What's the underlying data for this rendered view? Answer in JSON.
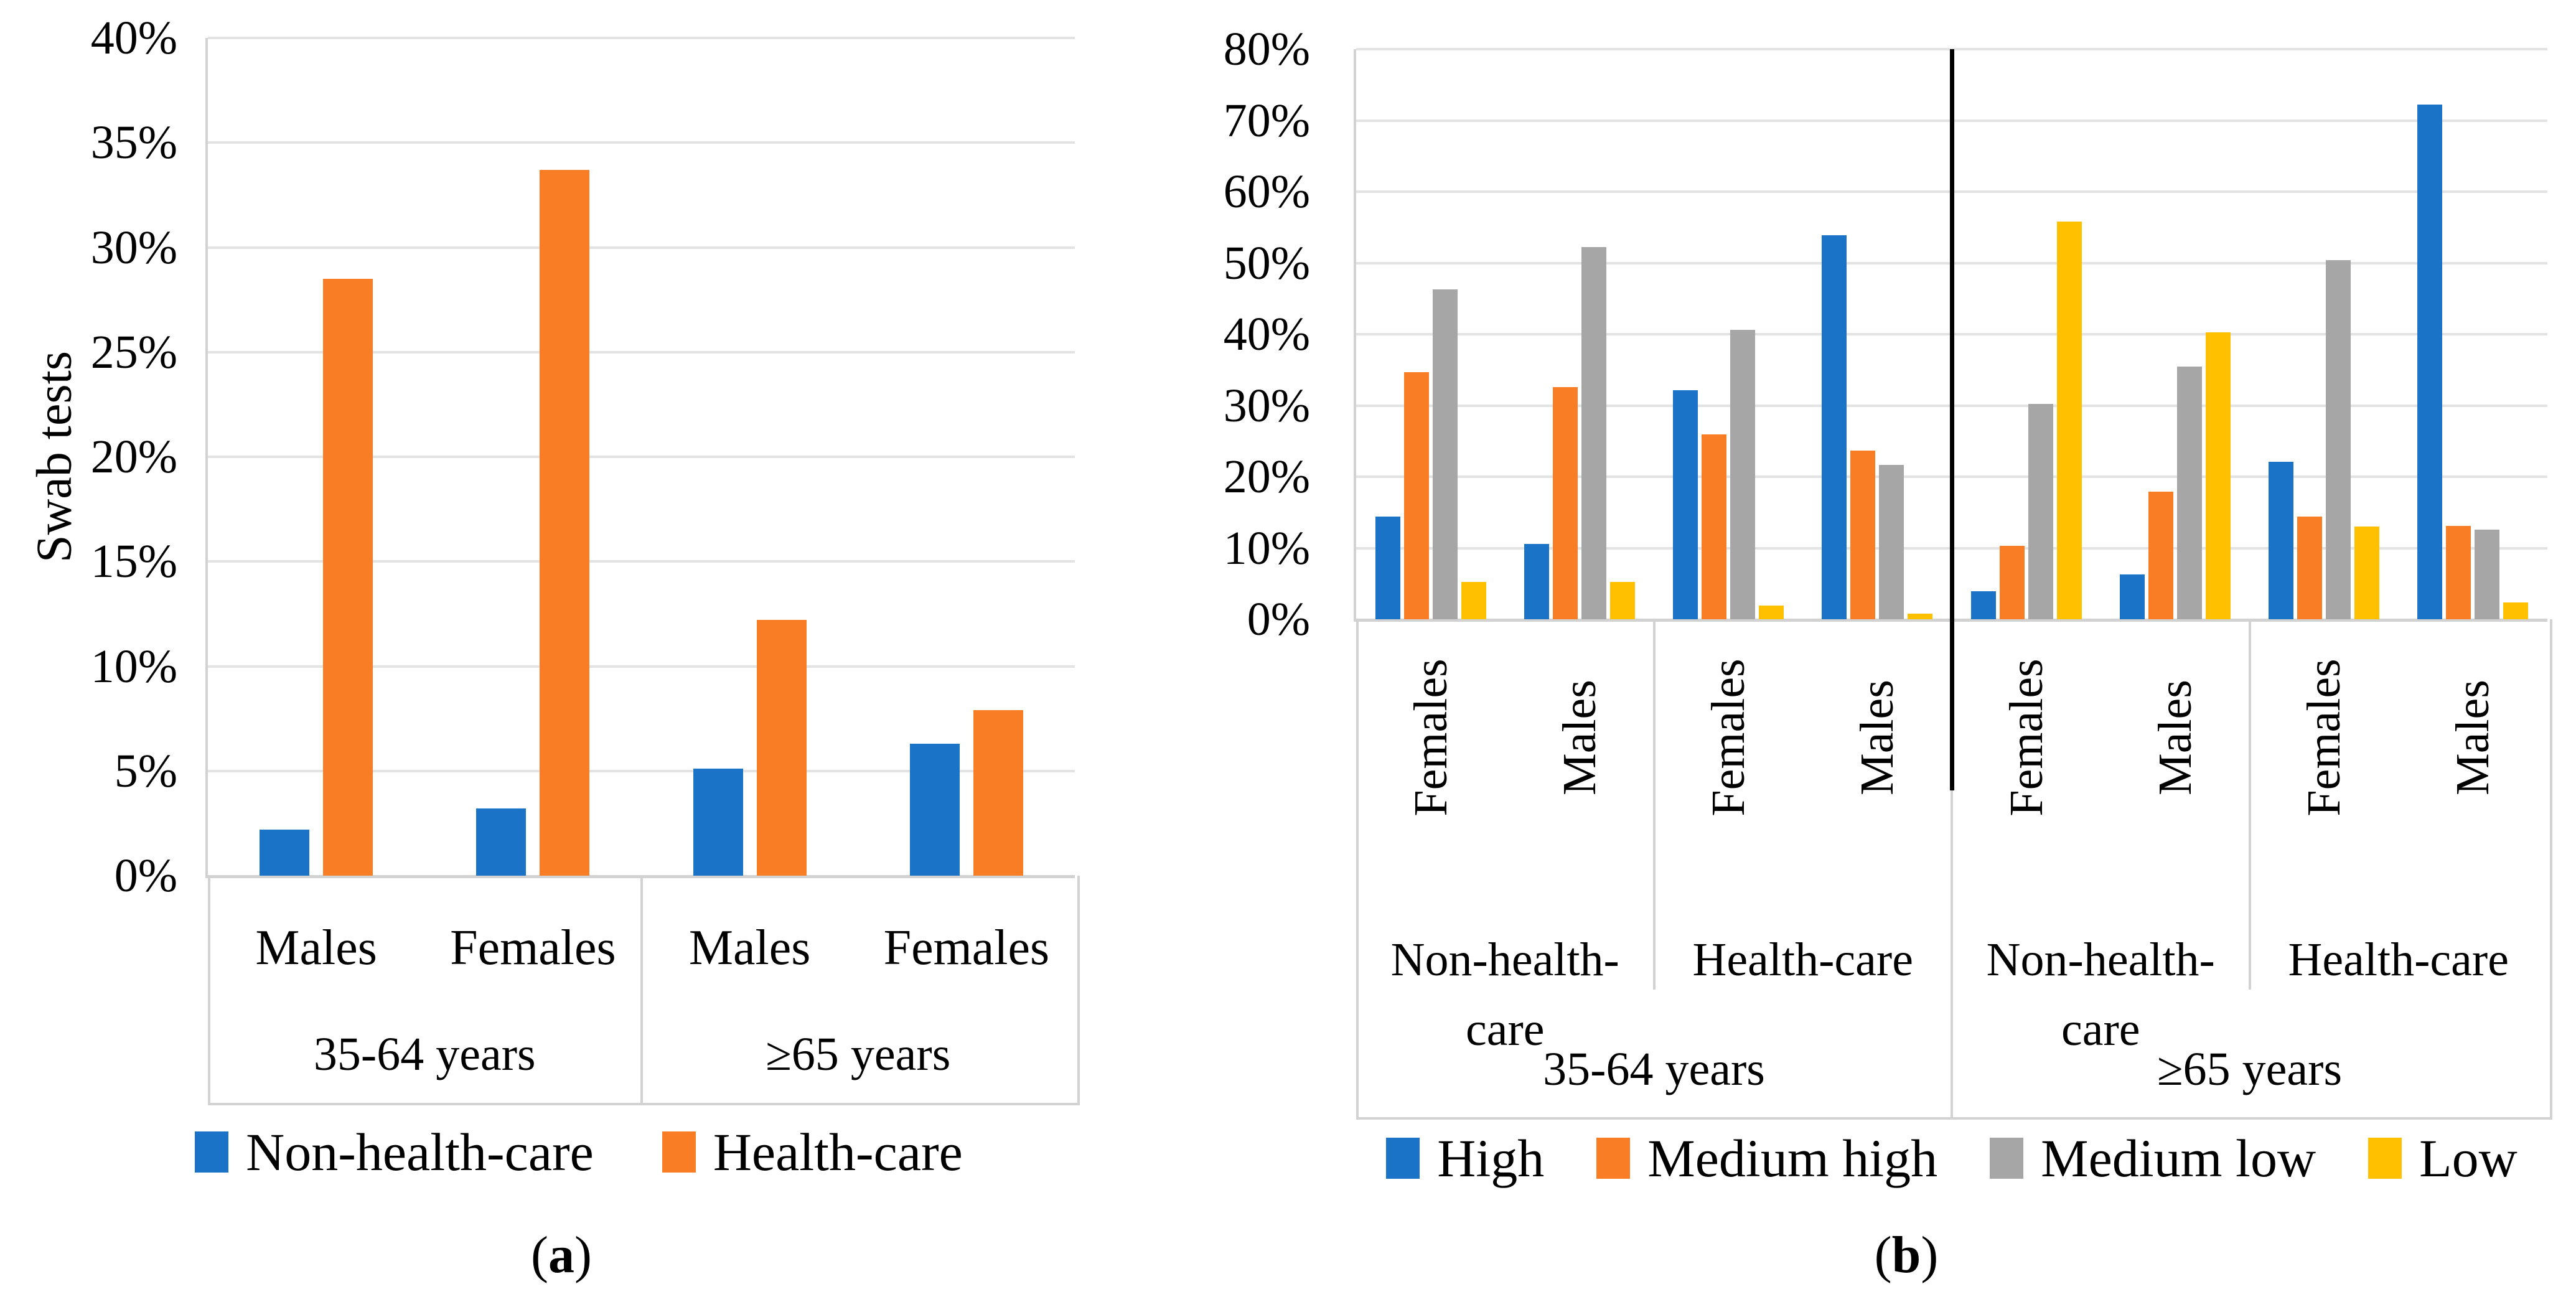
{
  "figure": {
    "colors": {
      "blue": "#1a73c6",
      "orange": "#f87d24",
      "gray": "#a6a6a6",
      "yellow": "#ffc000",
      "gridline": "#e3e3e3",
      "axis": "#d2d2d2",
      "divider": "#000000"
    },
    "panel_a": {
      "y_axis_title": "Swab tests",
      "tick_labels": [
        "0%",
        "5%",
        "10%",
        "15%",
        "20%",
        "25%",
        "30%",
        "35%",
        "40%"
      ],
      "tier1_labels": [
        "Males",
        "Females",
        "Males",
        "Females"
      ],
      "tier2_labels": [
        "35-64 years",
        "≥65 years"
      ],
      "legend": [
        {
          "label": "Non-health-care",
          "color_key": "blue"
        },
        {
          "label": "Health-care",
          "color_key": "orange"
        }
      ],
      "caption": {
        "open": "(",
        "letter": "a",
        "close": ")"
      }
    },
    "panel_b": {
      "tick_labels": [
        "0%",
        "10%",
        "20%",
        "30%",
        "40%",
        "50%",
        "60%",
        "70%",
        "80%"
      ],
      "tier1_labels": [
        "Females",
        "Males",
        "Females",
        "Males",
        "Females",
        "Males",
        "Females",
        "Males"
      ],
      "tier2_labels": [
        {
          "lines": [
            "Non-health-",
            "care"
          ]
        },
        {
          "lines": [
            "Health-care"
          ]
        },
        {
          "lines": [
            "Non-health-",
            "care"
          ]
        },
        {
          "lines": [
            "Health-care"
          ]
        }
      ],
      "tier3_labels": [
        "35-64 years",
        "≥65 years"
      ],
      "legend": [
        {
          "label": "High",
          "color_key": "blue"
        },
        {
          "label": "Medium high",
          "color_key": "orange"
        },
        {
          "label": "Medium low",
          "color_key": "gray"
        },
        {
          "label": "Low",
          "color_key": "yellow"
        }
      ],
      "caption": {
        "open": "(",
        "letter": "b",
        "close": ")"
      }
    }
  },
  "chart_data": [
    {
      "type": "bar",
      "panel": "a",
      "title": "",
      "ylabel": "Swab tests",
      "ylim": [
        0,
        40
      ],
      "y_step": 5,
      "grid": true,
      "legend_position": "bottom",
      "categories": [
        "35-64 years Males",
        "35-64 years Females",
        "≥65 years Males",
        "≥65 years Females"
      ],
      "series": [
        {
          "name": "Non-health-care",
          "color_key": "blue",
          "values": [
            2.2,
            3.2,
            5.1,
            6.3
          ]
        },
        {
          "name": "Health-care",
          "color_key": "orange",
          "values": [
            28.5,
            33.7,
            12.2,
            7.9
          ]
        }
      ]
    },
    {
      "type": "bar",
      "panel": "b",
      "title": "",
      "ylabel": "",
      "ylim": [
        0,
        80
      ],
      "y_step": 10,
      "grid": true,
      "legend_position": "bottom",
      "categories": [
        "35-64 years Non-health-care Females",
        "35-64 years Non-health-care Males",
        "35-64 years Health-care Females",
        "35-64 years Health-care Males",
        "≥65 years Non-health-care Females",
        "≥65 years Non-health-care Males",
        "≥65 years Health-care Females",
        "≥65 years Health-care Males"
      ],
      "series": [
        {
          "name": "High",
          "color_key": "blue",
          "values": [
            14.4,
            10.6,
            32.1,
            53.9,
            3.9,
            6.3,
            22.1,
            72.2
          ]
        },
        {
          "name": "Medium high",
          "color_key": "orange",
          "values": [
            34.7,
            32.6,
            25.9,
            23.7,
            10.3,
            17.9,
            14.4,
            13.1
          ]
        },
        {
          "name": "Medium low",
          "color_key": "gray",
          "values": [
            46.3,
            52.2,
            40.6,
            21.7,
            30.2,
            35.5,
            50.4,
            12.6
          ]
        },
        {
          "name": "Low",
          "color_key": "yellow",
          "values": [
            5.2,
            5.2,
            1.9,
            0.8,
            55.8,
            40.3,
            13.0,
            2.4
          ]
        }
      ]
    }
  ]
}
